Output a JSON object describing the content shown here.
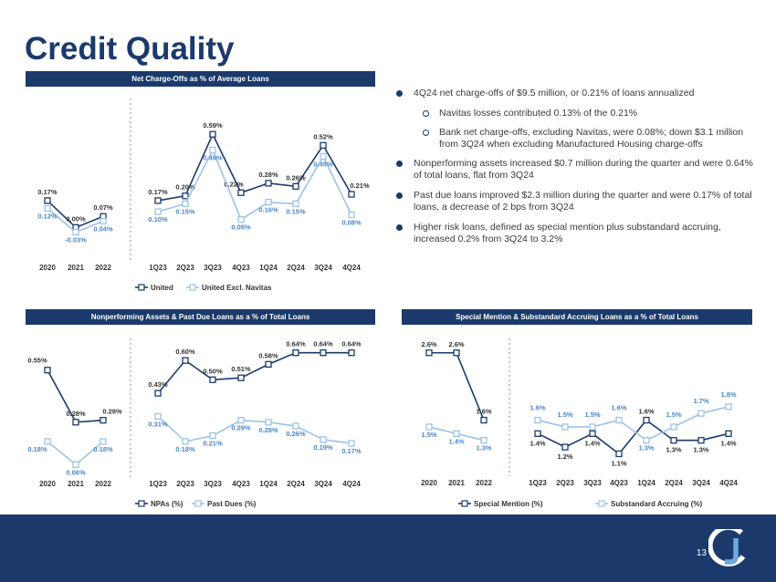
{
  "title": "Credit Quality",
  "page_number": "13",
  "logo": "cu-bancorp-logo",
  "colors": {
    "primary": "#1b3a6b",
    "secondary": "#9dc3e6",
    "text": "#333333"
  },
  "bullets": [
    {
      "level": 1,
      "text": "4Q24 net charge-offs of $9.5 million, or 0.21% of loans annualized"
    },
    {
      "level": 2,
      "text": "Navitas losses contributed 0.13% of the 0.21%"
    },
    {
      "level": 2,
      "text": "Bank net charge-offs, excluding Navitas, were 0.08%; down $3.1 million from 3Q24 when excluding Manufactured Housing charge-offs"
    },
    {
      "level": 1,
      "text": "Nonperforming assets increased $0.7 million during the quarter and were 0.64% of total loans, flat from 3Q24"
    },
    {
      "level": 1,
      "text": "Past due loans improved $2.3 million during the quarter and were 0.17% of total loans, a decrease of 2 bps from 3Q24"
    },
    {
      "level": 1,
      "text": "Higher risk loans, defined as special mention plus substandard accruing, increased 0.2% from 3Q24 to 3.2%"
    }
  ],
  "chart_data": [
    {
      "id": "nco",
      "type": "line",
      "title": "Net Charge-Offs as % of Average Loans",
      "annual": [
        "2020",
        "2021",
        "2022"
      ],
      "quarterly": [
        "1Q23",
        "2Q23",
        "3Q23",
        "4Q23",
        "1Q24",
        "2Q24",
        "3Q24",
        "4Q24"
      ],
      "ylim": [
        -0.05,
        0.62
      ],
      "series": [
        {
          "name": "United",
          "color": "#1b3a6b",
          "annual_values": [
            0.17,
            0.0,
            0.07
          ],
          "quarterly_values": [
            0.17,
            0.2,
            0.59,
            0.22,
            0.28,
            0.26,
            0.52,
            0.21
          ],
          "annual_labels": [
            "0.17%",
            "0.00%",
            "0.07%"
          ],
          "quarterly_labels": [
            "0.17%",
            "0.20%",
            "0.59%",
            "0.22%",
            "0.28%",
            "0.26%",
            "0.52%",
            "0.21%"
          ]
        },
        {
          "name": "United Excl. Navitas",
          "color": "#9dc3e6",
          "annual_values": [
            0.12,
            -0.03,
            0.04
          ],
          "quarterly_values": [
            0.1,
            0.15,
            0.49,
            0.05,
            0.16,
            0.15,
            0.45,
            0.08
          ],
          "annual_labels": [
            "0.12%",
            "-0.03%",
            "0.04%"
          ],
          "quarterly_labels": [
            "0.10%",
            "0.15%",
            "0.49%",
            "0.05%",
            "0.16%",
            "0.15%",
            "0.45%",
            "0.08%"
          ]
        }
      ]
    },
    {
      "id": "npa",
      "type": "line",
      "title": "Nonperforming Assets & Past Due Loans as a % of Total Loans",
      "annual": [
        "2020",
        "2021",
        "2022"
      ],
      "quarterly": [
        "1Q23",
        "2Q23",
        "3Q23",
        "4Q23",
        "1Q24",
        "2Q24",
        "3Q24",
        "4Q24"
      ],
      "ylim": [
        0.0,
        0.7
      ],
      "series": [
        {
          "name": "NPAs (%)",
          "color": "#1b3a6b",
          "annual_values": [
            0.55,
            0.28,
            0.29
          ],
          "quarterly_values": [
            0.43,
            0.6,
            0.5,
            0.51,
            0.58,
            0.64,
            0.64,
            0.64
          ],
          "annual_labels": [
            "0.55%",
            "0.28%",
            "0.29%"
          ],
          "quarterly_labels": [
            "0.43%",
            "0.60%",
            "0.50%",
            "0.51%",
            "0.58%",
            "0.64%",
            "0.64%",
            "0.64%"
          ]
        },
        {
          "name": "Past Dues (%)",
          "color": "#9dc3e6",
          "annual_values": [
            0.18,
            0.06,
            0.18
          ],
          "quarterly_values": [
            0.31,
            0.18,
            0.21,
            0.29,
            0.28,
            0.26,
            0.19,
            0.17
          ],
          "annual_labels": [
            "0.18%",
            "0.06%",
            "0.18%"
          ],
          "quarterly_labels": [
            "0.31%",
            "0.18%",
            "0.21%",
            "0.29%",
            "0.28%",
            "0.26%",
            "0.19%",
            "0.17%"
          ]
        }
      ]
    },
    {
      "id": "sm",
      "type": "line",
      "title": "Special Mention & Substandard Accruing Loans as a % of Total Loans",
      "annual": [
        "2020",
        "2021",
        "2022"
      ],
      "quarterly": [
        "1Q23",
        "2Q23",
        "3Q23",
        "4Q23",
        "1Q24",
        "2Q24",
        "3Q24",
        "4Q24"
      ],
      "ylim": [
        0.7,
        2.8
      ],
      "series": [
        {
          "name": "Special Mention (%)",
          "color": "#1b3a6b",
          "annual_values": [
            2.6,
            2.6,
            1.6
          ],
          "quarterly_values": [
            1.4,
            1.2,
            1.4,
            1.1,
            1.6,
            1.3,
            1.3,
            1.4
          ],
          "annual_labels": [
            "2.6%",
            "2.6%",
            "1.6%"
          ],
          "quarterly_labels": [
            "1.4%",
            "1.2%",
            "1.4%",
            "1.1%",
            "1.6%",
            "1.3%",
            "1.3%",
            "1.4%"
          ]
        },
        {
          "name": "Substandard Accruing (%)",
          "color": "#9dc3e6",
          "annual_values": [
            1.5,
            1.4,
            1.3
          ],
          "quarterly_values": [
            1.6,
            1.5,
            1.5,
            1.6,
            1.3,
            1.5,
            1.7,
            1.8
          ],
          "annual_labels": [
            "1.5%",
            "1.4%",
            "1.3%"
          ],
          "quarterly_labels": [
            "1.6%",
            "1.5%",
            "1.5%",
            "1.6%",
            "1.3%",
            "1.5%",
            "1.7%",
            "1.8%"
          ]
        }
      ]
    }
  ]
}
